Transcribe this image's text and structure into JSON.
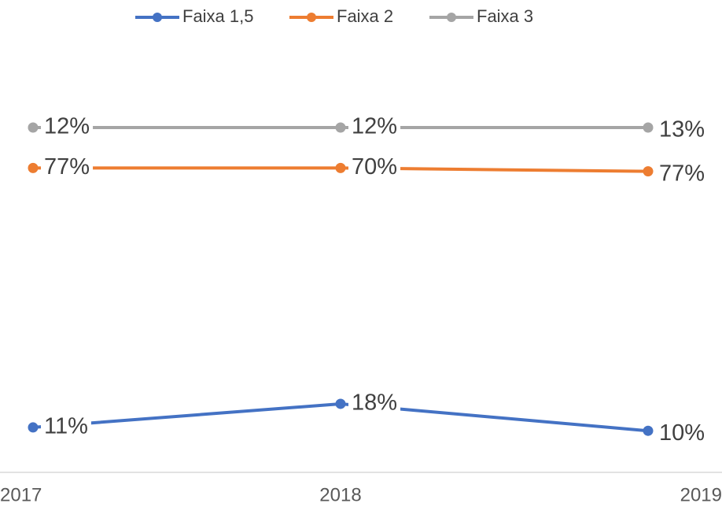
{
  "chart_data": {
    "type": "line",
    "stacked": true,
    "categories": [
      "2017",
      "2018",
      "2019"
    ],
    "series": [
      {
        "name": "Faixa 1,5",
        "color": "#4472c4",
        "values": [
          11,
          18,
          10
        ],
        "value_labels": [
          "11%",
          "18%",
          "10%"
        ]
      },
      {
        "name": "Faixa 2",
        "color": "#ed7d31",
        "values": [
          77,
          70,
          77
        ],
        "value_labels": [
          "77%",
          "70%",
          "77%"
        ]
      },
      {
        "name": "Faixa 3",
        "color": "#a5a5a5",
        "values": [
          12,
          12,
          13
        ],
        "value_labels": [
          "12%",
          "12%",
          "13%"
        ]
      }
    ],
    "ylim": [
      0,
      100
    ],
    "legend": "top"
  }
}
